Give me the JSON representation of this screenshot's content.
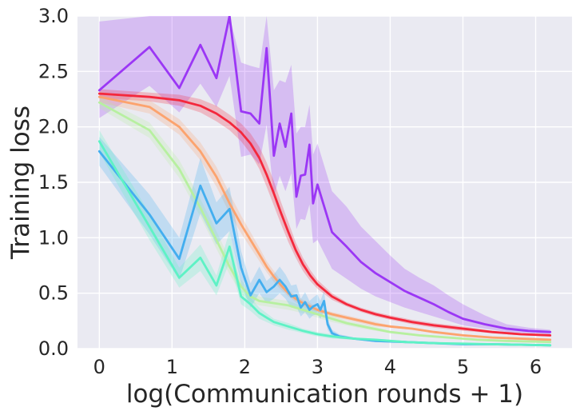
{
  "chart_data": {
    "type": "line",
    "xlabel": "log(Communication rounds + 1)",
    "ylabel": "Training loss",
    "xlim": [
      -0.3,
      6.5
    ],
    "ylim": [
      0,
      3.0
    ],
    "xticks": [
      0,
      1,
      2,
      3,
      4,
      5,
      6
    ],
    "yticks": [
      0.0,
      0.5,
      1.0,
      1.5,
      2.0,
      2.5,
      3.0
    ],
    "xtick_labels": [
      "0",
      "1",
      "2",
      "3",
      "4",
      "5",
      "6"
    ],
    "ytick_labels": [
      "0.0",
      "0.5",
      "1.0",
      "1.5",
      "2.0",
      "2.5",
      "3.0"
    ],
    "grid": true,
    "background": "#eaeaf2",
    "series": [
      {
        "color": "#9b37f5",
        "x": [
          0,
          0.69,
          1.1,
          1.39,
          1.61,
          1.79,
          1.95,
          2.08,
          2.2,
          2.3,
          2.4,
          2.48,
          2.56,
          2.64,
          2.71,
          2.77,
          2.83,
          2.89,
          2.94,
          3.0,
          3.2,
          3.4,
          3.6,
          3.8,
          4.0,
          4.2,
          4.4,
          4.6,
          4.8,
          5.0,
          5.3,
          5.6,
          5.9,
          6.2
        ],
        "y": [
          2.33,
          2.72,
          2.35,
          2.74,
          2.44,
          3.0,
          2.14,
          2.12,
          2.03,
          2.71,
          1.74,
          2.03,
          1.82,
          2.12,
          1.37,
          1.56,
          1.57,
          1.84,
          1.31,
          1.48,
          1.05,
          0.92,
          0.78,
          0.68,
          0.6,
          0.52,
          0.46,
          0.4,
          0.33,
          0.27,
          0.22,
          0.18,
          0.16,
          0.15
        ],
        "lower": [
          2.08,
          2.37,
          2.13,
          2.39,
          2.18,
          2.46,
          1.73,
          1.75,
          1.66,
          2.02,
          1.37,
          1.56,
          1.42,
          1.58,
          1.08,
          1.17,
          1.16,
          1.3,
          0.95,
          0.98,
          0.72,
          0.63,
          0.54,
          0.47,
          0.42,
          0.37,
          0.33,
          0.29,
          0.25,
          0.21,
          0.18,
          0.15,
          0.14,
          0.13
        ],
        "upper": [
          2.95,
          3.0,
          3.0,
          3.0,
          3.0,
          3.0,
          2.58,
          2.55,
          2.53,
          3.0,
          2.33,
          2.42,
          2.4,
          2.56,
          1.94,
          2.0,
          2.0,
          2.2,
          1.75,
          1.85,
          1.42,
          1.28,
          1.1,
          0.97,
          0.84,
          0.72,
          0.64,
          0.57,
          0.48,
          0.4,
          0.3,
          0.22,
          0.19,
          0.17
        ]
      },
      {
        "color": "#f4283c",
        "x": [
          0,
          0.69,
          1.1,
          1.39,
          1.61,
          1.79,
          1.95,
          2.08,
          2.2,
          2.3,
          2.4,
          2.5,
          2.6,
          2.7,
          2.8,
          2.9,
          3.0,
          3.2,
          3.4,
          3.6,
          3.8,
          4.0,
          4.3,
          4.6,
          5.0,
          5.4,
          5.8,
          6.2
        ],
        "y": [
          2.3,
          2.27,
          2.24,
          2.19,
          2.12,
          2.04,
          1.95,
          1.85,
          1.72,
          1.57,
          1.4,
          1.22,
          1.05,
          0.89,
          0.76,
          0.66,
          0.58,
          0.47,
          0.4,
          0.35,
          0.31,
          0.28,
          0.24,
          0.21,
          0.18,
          0.15,
          0.13,
          0.12
        ],
        "lower": [
          2.26,
          2.23,
          2.19,
          2.13,
          2.05,
          1.97,
          1.87,
          1.76,
          1.62,
          1.46,
          1.29,
          1.12,
          0.96,
          0.82,
          0.7,
          0.61,
          0.54,
          0.44,
          0.38,
          0.33,
          0.29,
          0.26,
          0.22,
          0.19,
          0.16,
          0.14,
          0.12,
          0.11
        ],
        "upper": [
          2.34,
          2.31,
          2.29,
          2.25,
          2.19,
          2.11,
          2.03,
          1.94,
          1.82,
          1.68,
          1.51,
          1.32,
          1.14,
          0.96,
          0.82,
          0.71,
          0.62,
          0.5,
          0.42,
          0.37,
          0.33,
          0.3,
          0.26,
          0.23,
          0.2,
          0.16,
          0.14,
          0.13
        ]
      },
      {
        "color": "#fca36e",
        "x": [
          0,
          0.69,
          1.1,
          1.39,
          1.61,
          1.79,
          1.95,
          2.08,
          2.2,
          2.3,
          2.4,
          2.5,
          2.6,
          2.7,
          2.8,
          2.9,
          3.0,
          3.2,
          3.4,
          3.6,
          3.8,
          4.0,
          4.3,
          4.6,
          5.0,
          5.4,
          5.8,
          6.2
        ],
        "y": [
          2.27,
          2.18,
          2.0,
          1.78,
          1.55,
          1.31,
          1.12,
          0.98,
          0.85,
          0.74,
          0.65,
          0.57,
          0.5,
          0.45,
          0.41,
          0.38,
          0.35,
          0.31,
          0.28,
          0.25,
          0.22,
          0.2,
          0.18,
          0.15,
          0.12,
          0.1,
          0.09,
          0.08
        ],
        "lower": [
          2.22,
          2.12,
          1.93,
          1.7,
          1.46,
          1.22,
          1.04,
          0.91,
          0.79,
          0.69,
          0.6,
          0.53,
          0.47,
          0.42,
          0.38,
          0.35,
          0.33,
          0.29,
          0.26,
          0.23,
          0.2,
          0.19,
          0.17,
          0.14,
          0.11,
          0.09,
          0.08,
          0.07
        ],
        "upper": [
          2.32,
          2.24,
          2.07,
          1.86,
          1.64,
          1.4,
          1.2,
          1.05,
          0.91,
          0.79,
          0.7,
          0.61,
          0.53,
          0.48,
          0.44,
          0.41,
          0.37,
          0.33,
          0.3,
          0.27,
          0.24,
          0.21,
          0.19,
          0.16,
          0.13,
          0.11,
          0.1,
          0.09
        ]
      },
      {
        "color": "#b7f0a0",
        "x": [
          0,
          0.69,
          1.1,
          1.39,
          1.61,
          1.79,
          1.95,
          2.08,
          2.2,
          2.3,
          2.4,
          2.6,
          2.8,
          3.0,
          3.2,
          3.4,
          3.7,
          4.0,
          4.4,
          4.8,
          5.2,
          5.6,
          6.2
        ],
        "y": [
          2.22,
          1.97,
          1.62,
          1.27,
          0.98,
          0.74,
          0.56,
          0.47,
          0.43,
          0.42,
          0.41,
          0.39,
          0.35,
          0.31,
          0.27,
          0.23,
          0.19,
          0.15,
          0.12,
          0.1,
          0.08,
          0.07,
          0.06
        ],
        "lower": [
          2.17,
          1.9,
          1.54,
          1.19,
          0.9,
          0.67,
          0.5,
          0.42,
          0.39,
          0.38,
          0.37,
          0.35,
          0.32,
          0.28,
          0.24,
          0.21,
          0.17,
          0.14,
          0.11,
          0.09,
          0.07,
          0.06,
          0.05
        ],
        "upper": [
          2.27,
          2.04,
          1.7,
          1.35,
          1.06,
          0.81,
          0.62,
          0.52,
          0.47,
          0.46,
          0.45,
          0.43,
          0.38,
          0.34,
          0.3,
          0.25,
          0.21,
          0.16,
          0.13,
          0.11,
          0.09,
          0.08,
          0.07
        ]
      },
      {
        "color": "#43aeef",
        "x": [
          0,
          0.69,
          1.1,
          1.39,
          1.61,
          1.79,
          1.95,
          2.08,
          2.2,
          2.3,
          2.4,
          2.48,
          2.56,
          2.64,
          2.71,
          2.77,
          2.83,
          2.89,
          2.94,
          3.0,
          3.04,
          3.09,
          3.14,
          3.2,
          3.3,
          3.5,
          3.8,
          4.2,
          4.6,
          5.0,
          5.4,
          5.8,
          6.2
        ],
        "y": [
          1.78,
          1.21,
          0.81,
          1.47,
          1.13,
          1.26,
          0.73,
          0.48,
          0.62,
          0.51,
          0.56,
          0.62,
          0.56,
          0.47,
          0.48,
          0.37,
          0.42,
          0.35,
          0.38,
          0.4,
          0.35,
          0.43,
          0.22,
          0.14,
          0.11,
          0.09,
          0.07,
          0.06,
          0.05,
          0.04,
          0.04,
          0.035,
          0.03
        ],
        "lower": [
          1.65,
          1.03,
          0.62,
          1.22,
          0.94,
          1.06,
          0.58,
          0.37,
          0.5,
          0.41,
          0.45,
          0.5,
          0.45,
          0.37,
          0.38,
          0.29,
          0.33,
          0.27,
          0.3,
          0.31,
          0.27,
          0.34,
          0.17,
          0.11,
          0.09,
          0.08,
          0.06,
          0.05,
          0.04,
          0.035,
          0.03,
          0.03,
          0.025
        ],
        "upper": [
          1.91,
          1.39,
          1.0,
          1.72,
          1.32,
          1.46,
          0.88,
          0.59,
          0.74,
          0.61,
          0.67,
          0.74,
          0.67,
          0.57,
          0.58,
          0.45,
          0.51,
          0.43,
          0.46,
          0.49,
          0.43,
          0.52,
          0.27,
          0.17,
          0.13,
          0.1,
          0.08,
          0.07,
          0.06,
          0.05,
          0.045,
          0.04,
          0.035
        ]
      },
      {
        "color": "#5ef2c5",
        "x": [
          0,
          0.69,
          1.1,
          1.39,
          1.61,
          1.79,
          1.95,
          2.08,
          2.2,
          2.3,
          2.4,
          2.6,
          2.8,
          3.0,
          3.2,
          3.5,
          3.8,
          4.2,
          4.6,
          5.0,
          5.4,
          5.8,
          6.2
        ],
        "y": [
          1.87,
          1.1,
          0.64,
          0.82,
          0.57,
          0.92,
          0.47,
          0.4,
          0.32,
          0.28,
          0.24,
          0.2,
          0.16,
          0.13,
          0.11,
          0.09,
          0.08,
          0.06,
          0.05,
          0.045,
          0.04,
          0.035,
          0.03
        ],
        "lower": [
          1.77,
          0.98,
          0.55,
          0.7,
          0.48,
          0.78,
          0.4,
          0.34,
          0.27,
          0.24,
          0.21,
          0.17,
          0.14,
          0.11,
          0.09,
          0.08,
          0.07,
          0.05,
          0.045,
          0.04,
          0.035,
          0.03,
          0.025
        ],
        "upper": [
          1.97,
          1.22,
          0.73,
          0.94,
          0.66,
          1.06,
          0.54,
          0.46,
          0.37,
          0.32,
          0.27,
          0.23,
          0.18,
          0.15,
          0.13,
          0.1,
          0.09,
          0.07,
          0.055,
          0.05,
          0.045,
          0.04,
          0.035
        ]
      }
    ]
  }
}
